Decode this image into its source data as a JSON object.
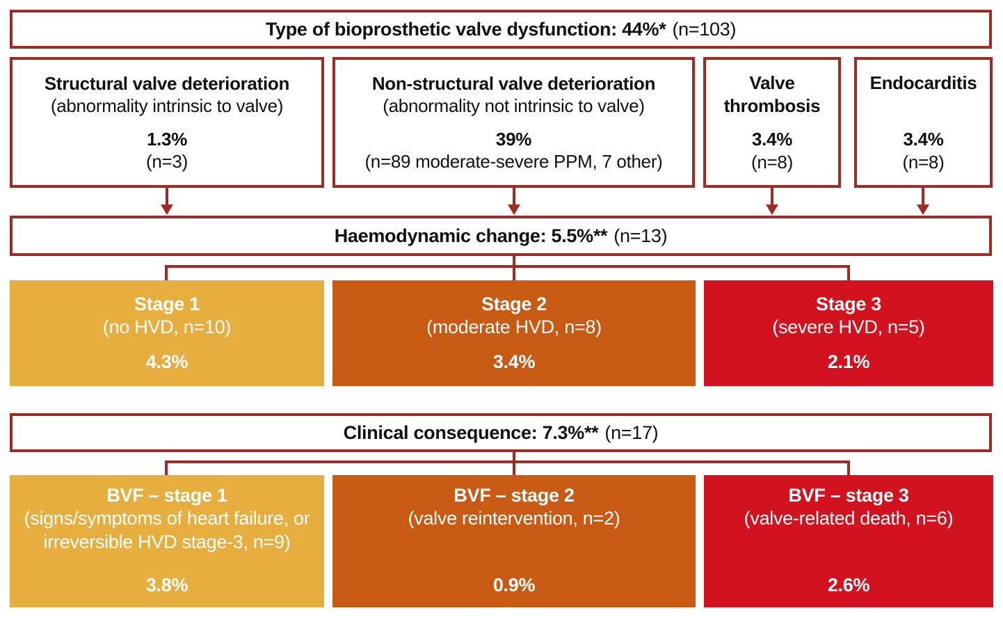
{
  "palette": {
    "border": "#9e2b25",
    "amber": "#e6ae3f",
    "orange": "#c95a14",
    "red": "#d2121e"
  },
  "top_band": {
    "bold": "Type of bioprosthetic valve dysfunction: 44%*",
    "normal": "(n=103)"
  },
  "dysfunction_boxes": [
    {
      "title": "Structural valve deterioration",
      "subtitle": "(abnormality intrinsic to valve)",
      "pct": "1.3%",
      "n": "(n=3)"
    },
    {
      "title": "Non-structural valve deterioration",
      "subtitle": "(abnormality not intrinsic to valve)",
      "pct": "39%",
      "n": "(n=89 moderate-severe PPM, 7 other)"
    },
    {
      "title": "Valve thrombosis",
      "subtitle": "",
      "pct": "3.4%",
      "n": "(n=8)"
    },
    {
      "title": "Endocarditis",
      "subtitle": "",
      "pct": "3.4%",
      "n": "(n=8)"
    }
  ],
  "haemo_band": {
    "bold": "Haemodynamic change: 5.5%**",
    "normal": "(n=13)"
  },
  "stage_boxes": [
    {
      "title": "Stage 1",
      "subtitle": "(no HVD, n=10)",
      "pct": "4.3%",
      "color": "amber"
    },
    {
      "title": "Stage 2",
      "subtitle": "(moderate HVD, n=8)",
      "pct": "3.4%",
      "color": "orange"
    },
    {
      "title": "Stage 3",
      "subtitle": "(severe HVD, n=5)",
      "pct": "2.1%",
      "color": "red"
    }
  ],
  "clinical_band": {
    "bold": "Clinical consequence: 7.3%**",
    "normal": "(n=17)"
  },
  "bvf_boxes": [
    {
      "title": "BVF – stage 1",
      "subtitle": "(signs/symptoms of heart failure, or irreversible HVD stage-3, n=9)",
      "pct": "3.8%",
      "color": "amber"
    },
    {
      "title": "BVF – stage 2",
      "subtitle": "(valve reintervention, n=2)",
      "pct": "0.9%",
      "color": "orange"
    },
    {
      "title": "BVF – stage 3",
      "subtitle": "(valve-related death, n=6)",
      "pct": "2.6%",
      "color": "red"
    }
  ]
}
